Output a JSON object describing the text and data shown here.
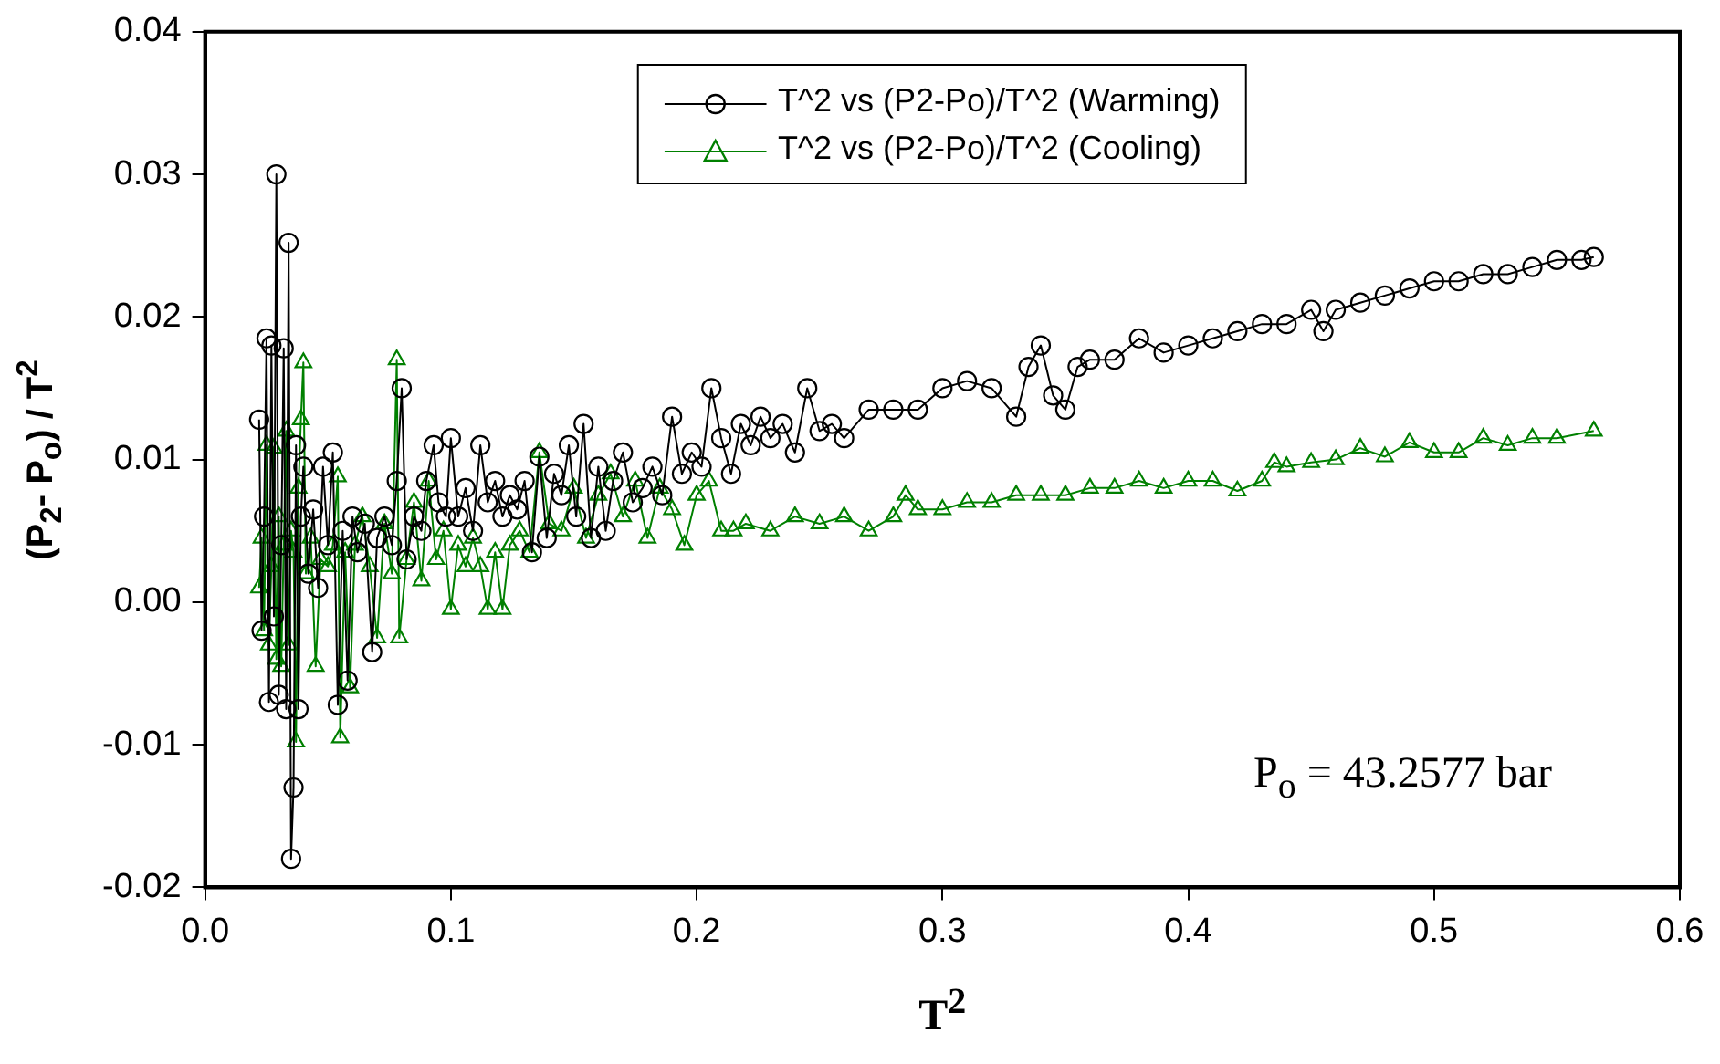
{
  "chart_data": {
    "type": "line",
    "xlabel": "T$^{2}$",
    "ylabel": "(P$_{2}$- P$_{o}$) / T$^{2}$",
    "annotations": [
      "P$_{o}$ = 43.2577 bar"
    ],
    "legend": "top",
    "grid": false,
    "xlim": [
      0,
      0.6
    ],
    "xticks": [
      {
        "value": 0,
        "label": "0.0"
      },
      0.1,
      0.2,
      0.3,
      0.4,
      0.5,
      0.6
    ],
    "ylim": [
      -0.02,
      0.04
    ],
    "yticks": [
      -0.02,
      -0.01,
      {
        "value": 0,
        "label": "0.00"
      },
      0.01,
      0.02,
      0.03,
      0.04
    ],
    "series": [
      {
        "name": "T^2 vs (P2-Po)/T^2 (Warming)",
        "color": "#000000",
        "marker": "circle",
        "line_style": "solid",
        "x": [
          0.022,
          0.023,
          0.024,
          0.025,
          0.026,
          0.027,
          0.028,
          0.029,
          0.03,
          0.031,
          0.032,
          0.033,
          0.034,
          0.035,
          0.036,
          0.037,
          0.038,
          0.039,
          0.04,
          0.042,
          0.044,
          0.046,
          0.048,
          0.05,
          0.052,
          0.054,
          0.056,
          0.058,
          0.06,
          0.062,
          0.065,
          0.068,
          0.07,
          0.073,
          0.076,
          0.078,
          0.08,
          0.082,
          0.085,
          0.088,
          0.09,
          0.093,
          0.095,
          0.098,
          0.1,
          0.103,
          0.106,
          0.109,
          0.112,
          0.115,
          0.118,
          0.121,
          0.124,
          0.127,
          0.13,
          0.133,
          0.136,
          0.139,
          0.142,
          0.145,
          0.148,
          0.151,
          0.154,
          0.157,
          0.16,
          0.163,
          0.166,
          0.17,
          0.174,
          0.178,
          0.182,
          0.186,
          0.19,
          0.194,
          0.198,
          0.202,
          0.206,
          0.21,
          0.214,
          0.218,
          0.222,
          0.226,
          0.23,
          0.235,
          0.24,
          0.245,
          0.25,
          0.255,
          0.26,
          0.27,
          0.28,
          0.29,
          0.3,
          0.31,
          0.32,
          0.33,
          0.335,
          0.34,
          0.345,
          0.35,
          0.355,
          0.36,
          0.37,
          0.38,
          0.39,
          0.4,
          0.41,
          0.42,
          0.43,
          0.44,
          0.45,
          0.455,
          0.46,
          0.47,
          0.48,
          0.49,
          0.5,
          0.51,
          0.52,
          0.53,
          0.54,
          0.55,
          0.56,
          0.565
        ],
        "values": [
          0.0128,
          -0.002,
          0.006,
          0.0185,
          -0.007,
          0.018,
          -0.001,
          0.03,
          -0.0065,
          0.004,
          0.0178,
          -0.0075,
          0.0252,
          -0.018,
          -0.013,
          0.011,
          -0.0075,
          0.006,
          0.0095,
          0.002,
          0.0065,
          0.001,
          0.0095,
          0.004,
          0.0105,
          -0.0072,
          0.005,
          -0.0055,
          0.006,
          0.0035,
          0.0055,
          -0.0035,
          0.0045,
          0.006,
          0.004,
          0.0085,
          0.015,
          0.003,
          0.006,
          0.005,
          0.0085,
          0.011,
          0.007,
          0.006,
          0.0115,
          0.006,
          0.008,
          0.005,
          0.011,
          0.007,
          0.0085,
          0.006,
          0.0075,
          0.0065,
          0.0085,
          0.0035,
          0.0102,
          0.0045,
          0.009,
          0.0075,
          0.011,
          0.006,
          0.0125,
          0.0045,
          0.0095,
          0.005,
          0.0085,
          0.0105,
          0.007,
          0.008,
          0.0095,
          0.0075,
          0.013,
          0.009,
          0.0105,
          0.0095,
          0.015,
          0.0115,
          0.009,
          0.0125,
          0.011,
          0.013,
          0.0115,
          0.0125,
          0.0105,
          0.015,
          0.012,
          0.0125,
          0.0115,
          0.0135,
          0.0135,
          0.0135,
          0.015,
          0.0155,
          0.015,
          0.013,
          0.0165,
          0.018,
          0.0145,
          0.0135,
          0.0165,
          0.017,
          0.017,
          0.0185,
          0.0175,
          0.018,
          0.0185,
          0.019,
          0.0195,
          0.0195,
          0.0205,
          0.019,
          0.0205,
          0.021,
          0.0215,
          0.022,
          0.0225,
          0.0225,
          0.023,
          0.023,
          0.0235,
          0.024,
          0.024,
          0.0242
        ]
      },
      {
        "name": "T^2 vs (P2-Po)/T^2 (Cooling)",
        "color": "#008000",
        "marker": "triangle",
        "line_style": "solid",
        "x": [
          0.022,
          0.023,
          0.024,
          0.025,
          0.026,
          0.027,
          0.028,
          0.029,
          0.03,
          0.031,
          0.032,
          0.033,
          0.034,
          0.035,
          0.036,
          0.037,
          0.038,
          0.039,
          0.04,
          0.041,
          0.043,
          0.045,
          0.047,
          0.05,
          0.052,
          0.054,
          0.055,
          0.057,
          0.059,
          0.061,
          0.064,
          0.067,
          0.07,
          0.073,
          0.076,
          0.078,
          0.079,
          0.082,
          0.085,
          0.088,
          0.091,
          0.094,
          0.097,
          0.1,
          0.103,
          0.106,
          0.109,
          0.112,
          0.115,
          0.118,
          0.121,
          0.124,
          0.128,
          0.132,
          0.136,
          0.14,
          0.145,
          0.15,
          0.155,
          0.16,
          0.165,
          0.17,
          0.175,
          0.18,
          0.185,
          0.19,
          0.195,
          0.2,
          0.205,
          0.21,
          0.215,
          0.22,
          0.23,
          0.24,
          0.25,
          0.26,
          0.27,
          0.28,
          0.285,
          0.29,
          0.3,
          0.31,
          0.32,
          0.33,
          0.34,
          0.35,
          0.36,
          0.37,
          0.38,
          0.39,
          0.4,
          0.41,
          0.42,
          0.43,
          0.435,
          0.44,
          0.45,
          0.46,
          0.47,
          0.48,
          0.49,
          0.5,
          0.51,
          0.52,
          0.53,
          0.54,
          0.55,
          0.565
        ],
        "values": [
          0.001,
          0.0045,
          -0.002,
          0.011,
          -0.003,
          0.0025,
          0.0108,
          -0.004,
          0.006,
          -0.0045,
          0.004,
          0.012,
          -0.003,
          0.005,
          0.0035,
          -0.0098,
          0.008,
          0.0128,
          0.0168,
          0.002,
          0.0045,
          -0.0045,
          0.003,
          0.0025,
          0.004,
          0.0088,
          -0.0095,
          0.0035,
          -0.006,
          0.004,
          0.006,
          0.0025,
          -0.0025,
          0.0055,
          0.002,
          0.017,
          -0.0025,
          0.003,
          0.007,
          0.0015,
          0.0085,
          0.003,
          0.005,
          -0.0005,
          0.004,
          0.0025,
          0.0045,
          0.0025,
          -0.0005,
          0.0035,
          -0.0005,
          0.004,
          0.005,
          0.0035,
          0.0105,
          0.0055,
          0.005,
          0.008,
          0.0045,
          0.0075,
          0.009,
          0.006,
          0.0085,
          0.0045,
          0.008,
          0.0065,
          0.004,
          0.0075,
          0.0085,
          0.005,
          0.005,
          0.0055,
          0.005,
          0.006,
          0.0055,
          0.006,
          0.005,
          0.006,
          0.0075,
          0.0065,
          0.0065,
          0.007,
          0.007,
          0.0075,
          0.0075,
          0.0075,
          0.008,
          0.008,
          0.0085,
          0.008,
          0.0085,
          0.0085,
          0.0078,
          0.0085,
          0.0098,
          0.0095,
          0.0098,
          0.01,
          0.0108,
          0.0102,
          0.0112,
          0.0105,
          0.0105,
          0.0115,
          0.011,
          0.0115,
          0.0115,
          0.012
        ]
      }
    ]
  }
}
